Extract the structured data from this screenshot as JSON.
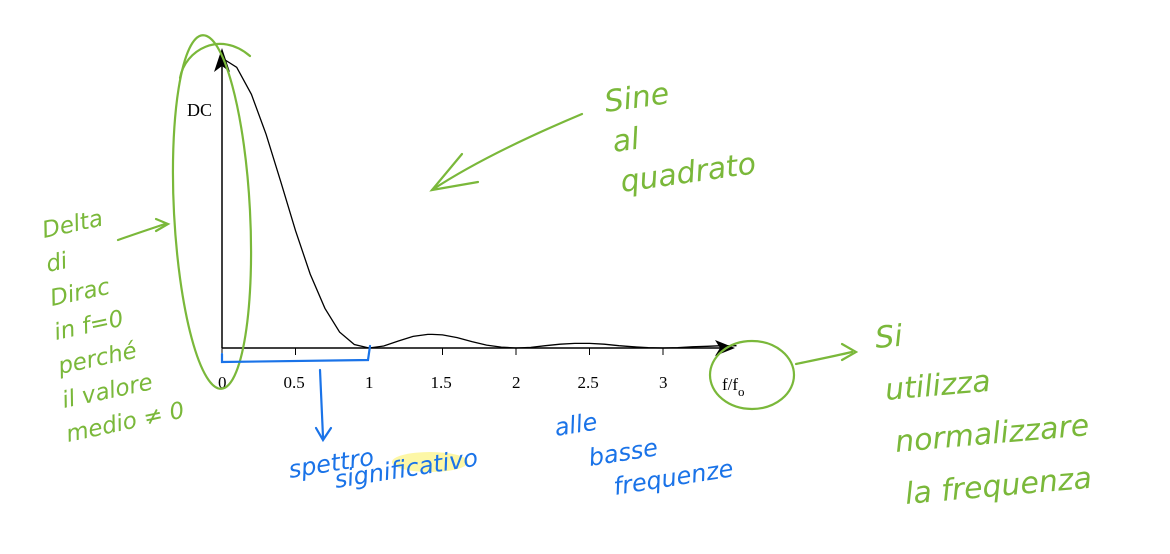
{
  "chart_data": {
    "type": "line",
    "title": "",
    "xlabel": "f/f",
    "xlabel_sub": "o",
    "ylabel": "DC",
    "xlim": [
      0,
      3.5
    ],
    "ylim": [
      0,
      1
    ],
    "xticks": [
      "0",
      "0.5",
      "1",
      "1.5",
      "2",
      "2.5",
      "3"
    ],
    "grid": false,
    "series": [
      {
        "x": [
          0,
          0.1,
          0.2,
          0.3,
          0.4,
          0.5,
          0.6,
          0.7,
          0.8,
          0.9,
          1.0,
          1.1,
          1.2,
          1.3,
          1.4,
          1.43,
          1.5,
          1.6,
          1.7,
          1.8,
          1.9,
          2.0,
          2.1,
          2.2,
          2.3,
          2.4,
          2.46,
          2.5,
          2.6,
          2.7,
          2.8,
          2.9,
          3.0,
          3.1,
          3.2,
          3.3,
          3.4,
          3.5
        ],
        "y": [
          1,
          0.968,
          0.875,
          0.737,
          0.573,
          0.405,
          0.255,
          0.137,
          0.055,
          0.012,
          0,
          0.007,
          0.024,
          0.04,
          0.047,
          0.047,
          0.045,
          0.036,
          0.022,
          0.01,
          0.003,
          0,
          0.002,
          0.008,
          0.013,
          0.016,
          0.016,
          0.016,
          0.013,
          0.008,
          0.004,
          0.001,
          0,
          0.001,
          0.004,
          0.006,
          0.008,
          0.008
        ]
      }
    ]
  },
  "annotations": {
    "top_right": [
      "Sine",
      "al",
      "quadrato"
    ],
    "left": [
      "Delta",
      "di",
      "Dirac",
      "in f=0",
      "perché",
      "il valore",
      "medio ≠ 0"
    ],
    "right": [
      "Si",
      "utilizza",
      "normalizzare",
      "la frequenza"
    ],
    "bottom": [
      "spettro",
      "significativo",
      "alle",
      "basse",
      "frequenze"
    ]
  },
  "colors": {
    "curve": "#000000",
    "annotation_green": "#7ab83a",
    "annotation_blue": "#1a73e8",
    "highlight": "#fbf26a"
  }
}
